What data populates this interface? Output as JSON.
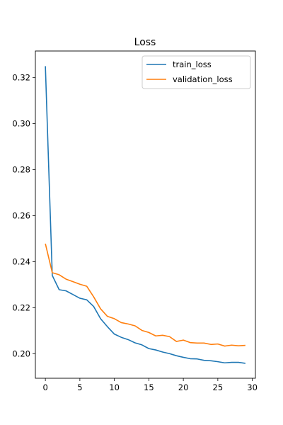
{
  "chart_data": {
    "type": "line",
    "title": "Loss",
    "xlabel": "",
    "ylabel": "",
    "xlim": [
      -1.45,
      30.45
    ],
    "ylim": [
      0.1893,
      0.3316
    ],
    "xticks": [
      0,
      5,
      10,
      15,
      20,
      25,
      30
    ],
    "yticks": [
      0.2,
      0.22,
      0.24,
      0.26,
      0.28,
      0.3,
      0.32
    ],
    "ytick_labels": [
      "0.20",
      "0.22",
      "0.24",
      "0.26",
      "0.28",
      "0.30",
      "0.32"
    ],
    "grid": false,
    "legend_position": "top-right",
    "x": [
      0,
      1,
      2,
      3,
      4,
      5,
      6,
      7,
      8,
      9,
      10,
      11,
      12,
      13,
      14,
      15,
      16,
      17,
      18,
      19,
      20,
      21,
      22,
      23,
      24,
      25,
      26,
      27,
      28,
      29
    ],
    "series": [
      {
        "name": "train_loss",
        "color": "#1f77b4",
        "values": [
          0.325,
          0.234,
          0.2278,
          0.2273,
          0.2257,
          0.2241,
          0.2234,
          0.2205,
          0.2152,
          0.2117,
          0.2085,
          0.2071,
          0.2061,
          0.2047,
          0.2038,
          0.2022,
          0.2016,
          0.2007,
          0.2,
          0.1991,
          0.1984,
          0.1978,
          0.1977,
          0.1971,
          0.1969,
          0.1965,
          0.196,
          0.1962,
          0.1962,
          0.1958
        ]
      },
      {
        "name": "validation_loss",
        "color": "#ff7f0e",
        "values": [
          0.2478,
          0.2352,
          0.2343,
          0.2324,
          0.2313,
          0.2302,
          0.2293,
          0.2247,
          0.2195,
          0.2162,
          0.2152,
          0.2135,
          0.2129,
          0.2121,
          0.2101,
          0.2092,
          0.2077,
          0.208,
          0.2074,
          0.2053,
          0.2059,
          0.2048,
          0.2046,
          0.2046,
          0.204,
          0.2042,
          0.2033,
          0.2037,
          0.2034,
          0.2036
        ]
      }
    ]
  }
}
